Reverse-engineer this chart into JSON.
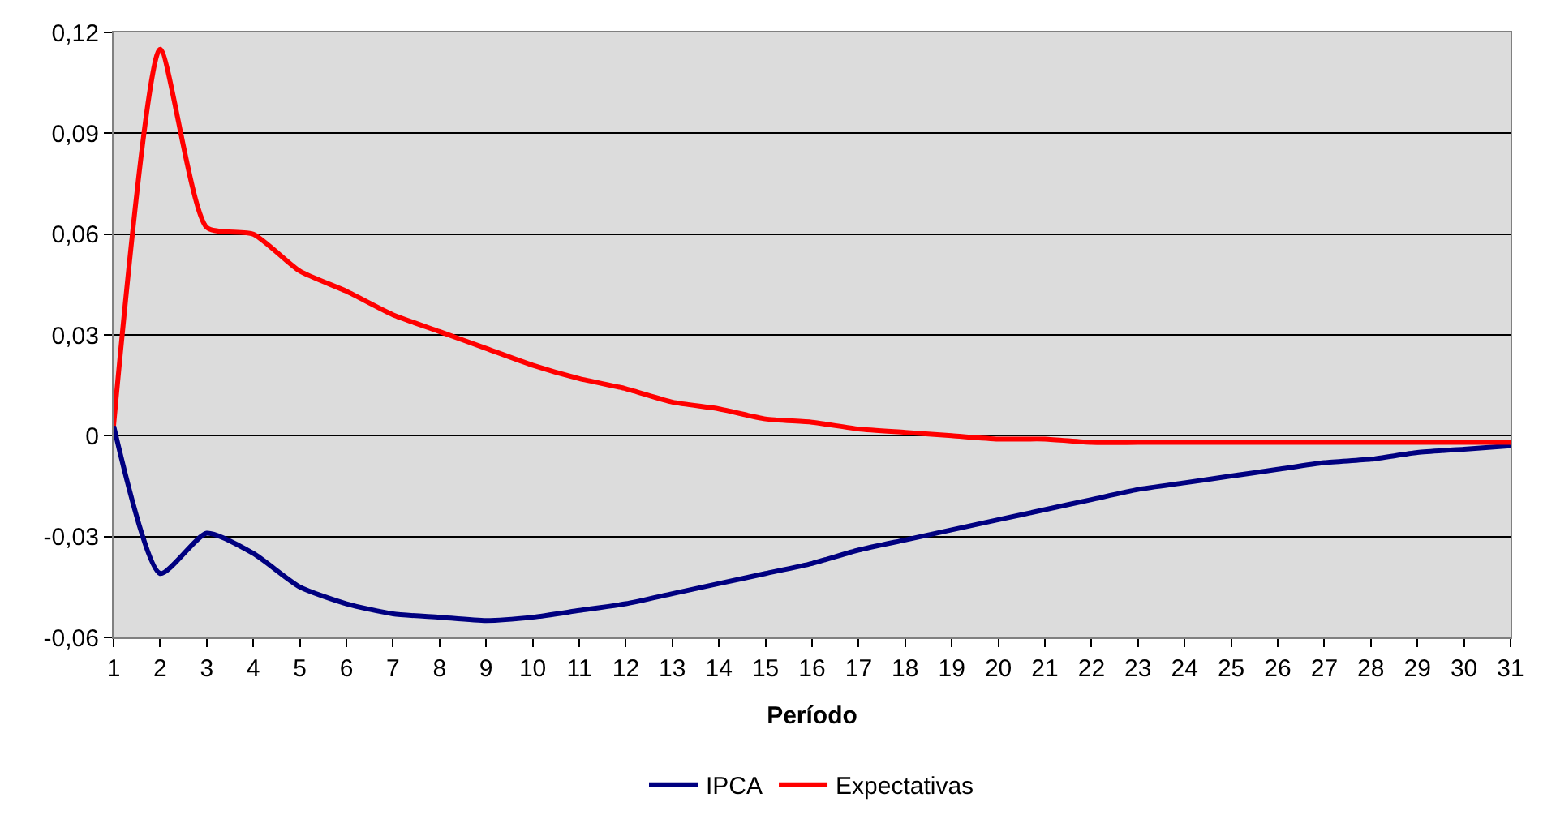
{
  "chart_data": {
    "type": "line",
    "xlabel": "Período",
    "x": [
      1,
      2,
      3,
      4,
      5,
      6,
      7,
      8,
      9,
      10,
      11,
      12,
      13,
      14,
      15,
      16,
      17,
      18,
      19,
      20,
      21,
      22,
      23,
      24,
      25,
      26,
      27,
      28,
      29,
      30,
      31
    ],
    "series": [
      {
        "name": "IPCA",
        "color": "#000080",
        "values": [
          0.003,
          -0.041,
          -0.029,
          -0.035,
          -0.045,
          -0.05,
          -0.053,
          -0.054,
          -0.055,
          -0.054,
          -0.052,
          -0.05,
          -0.047,
          -0.044,
          -0.041,
          -0.038,
          -0.034,
          -0.031,
          -0.028,
          -0.025,
          -0.022,
          -0.019,
          -0.016,
          -0.014,
          -0.012,
          -0.01,
          -0.008,
          -0.007,
          -0.005,
          -0.004,
          -0.003
        ]
      },
      {
        "name": "Expectativas",
        "color": "#ff0000",
        "values": [
          0.003,
          0.115,
          0.062,
          0.06,
          0.049,
          0.043,
          0.036,
          0.031,
          0.026,
          0.021,
          0.017,
          0.014,
          0.01,
          0.008,
          0.005,
          0.004,
          0.002,
          0.001,
          0.0,
          -0.001,
          -0.001,
          -0.002,
          -0.002,
          -0.002,
          -0.002,
          -0.002,
          -0.002,
          -0.002,
          -0.002,
          -0.002,
          -0.002
        ]
      }
    ],
    "xlim": [
      1,
      31
    ],
    "xticks": [
      1,
      2,
      3,
      4,
      5,
      6,
      7,
      8,
      9,
      10,
      11,
      12,
      13,
      14,
      15,
      16,
      17,
      18,
      19,
      20,
      21,
      22,
      23,
      24,
      25,
      26,
      27,
      28,
      29,
      30,
      31
    ],
    "ylim": [
      -0.06,
      0.12
    ],
    "yticks": [
      {
        "value": 0.12,
        "label": "0,12"
      },
      {
        "value": 0.09,
        "label": "0,09"
      },
      {
        "value": 0.06,
        "label": "0,06"
      },
      {
        "value": 0.03,
        "label": "0,03"
      },
      0,
      {
        "value": -0.03,
        "label": "-0,03"
      },
      {
        "value": -0.06,
        "label": "-0,06"
      }
    ],
    "grid": "y",
    "legend": "bottom",
    "marker": "none",
    "line_style": "solid"
  }
}
